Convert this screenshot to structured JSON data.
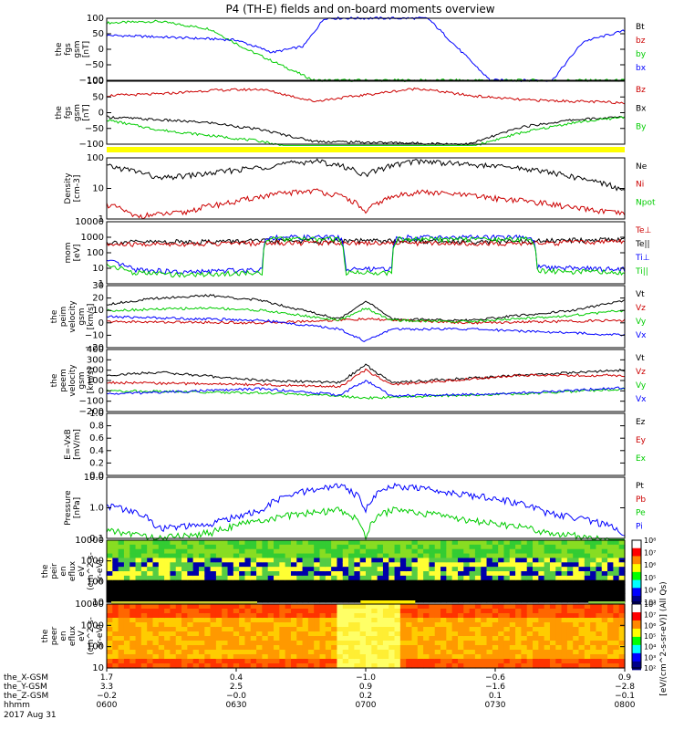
{
  "title": "P4 (TH-E) fields and on-board moments overview",
  "colors": {
    "black": "#000000",
    "red": "#cc0000",
    "green": "#00cc00",
    "blue": "#0000ff",
    "yellow": "#ffff00"
  },
  "chart_data": [
    {
      "type": "line",
      "panel": "fgs-gsm",
      "ylabel": [
        "the",
        "fgs",
        "gsm",
        "[nT]"
      ],
      "ylim": [
        -100,
        100
      ],
      "yticks": [
        "100",
        "50",
        "0",
        "−50",
        "−100"
      ],
      "legend": [
        "Bt",
        "bz",
        "by",
        "bx"
      ],
      "series": [
        {
          "name": "by",
          "color": "green",
          "x": [
            0,
            0.1,
            0.2,
            0.27,
            0.4,
            0.45,
            0.7,
            0.8,
            0.82
          ],
          "y": [
            85,
            90,
            65,
            0,
            -100,
            -100,
            -100,
            -100,
            -100
          ]
        },
        {
          "name": "bx",
          "color": "blue",
          "x": [
            0,
            0.1,
            0.25,
            0.32,
            0.38,
            0.42,
            0.62,
            0.74,
            0.86,
            0.92,
            1
          ],
          "y": [
            45,
            40,
            30,
            -10,
            10,
            100,
            100,
            -100,
            -100,
            25,
            60
          ]
        }
      ]
    },
    {
      "type": "line",
      "panel": "fgs-gsm-lo",
      "ylabel": [
        "the",
        "fgs",
        "gsm",
        "[nT]"
      ],
      "ylim": [
        -120,
        100
      ],
      "yticks": [
        "100",
        "50",
        "0",
        "−50",
        "−100"
      ],
      "legend": [
        "Bz",
        "Bx",
        "By"
      ],
      "series": [
        {
          "name": "Bz",
          "color": "red",
          "x": [
            0,
            0.1,
            0.2,
            0.3,
            0.4,
            0.6,
            0.7,
            0.8,
            0.9,
            1
          ],
          "y": [
            50,
            55,
            68,
            72,
            30,
            75,
            50,
            35,
            30,
            25
          ]
        },
        {
          "name": "Bx",
          "color": "black",
          "x": [
            0,
            0.1,
            0.2,
            0.3,
            0.4,
            0.7,
            0.8,
            0.9,
            1
          ],
          "y": [
            -25,
            -35,
            -45,
            -70,
            -110,
            -120,
            -60,
            -35,
            -25
          ]
        },
        {
          "name": "By",
          "color": "green",
          "x": [
            0,
            0.1,
            0.2,
            0.3,
            0.35,
            0.7,
            0.8,
            0.9,
            1
          ],
          "y": [
            -35,
            -70,
            -90,
            -110,
            -130,
            -130,
            -80,
            -45,
            -25
          ]
        }
      ]
    },
    {
      "type": "line",
      "panel": "density",
      "ylabel": [
        "Density",
        "[cm-3]"
      ],
      "yscale": "log",
      "ylim": [
        0.3,
        250
      ],
      "yticks": [
        "100",
        "10",
        "1"
      ],
      "legend": [
        "Ne",
        "Ni",
        "Npot"
      ],
      "series": [
        {
          "name": "Ne",
          "color": "black",
          "x": [
            0,
            0.1,
            0.2,
            0.3,
            0.4,
            0.5,
            0.6,
            0.7,
            0.8,
            0.9,
            1
          ],
          "y": [
            100,
            25,
            45,
            90,
            180,
            35,
            180,
            120,
            80,
            30,
            6
          ]
        },
        {
          "name": "Ni",
          "color": "red",
          "x": [
            0,
            0.05,
            0.15,
            0.25,
            0.4,
            0.5,
            0.6,
            0.75,
            0.9,
            1
          ],
          "y": [
            1.5,
            0.4,
            0.6,
            2,
            7,
            0.5,
            6,
            3,
            1,
            0.5
          ]
        }
      ]
    },
    {
      "type": "line",
      "panel": "temperature",
      "ylabel": [
        "mom",
        "[eV]"
      ],
      "yscale": "log",
      "ylim": [
        5,
        10000
      ],
      "yticks": [
        "10000",
        "1000",
        "100",
        "10",
        "1"
      ],
      "legend": [
        "Te⊥",
        "Te||",
        "Ti⊥",
        "Ti||"
      ],
      "series": [
        {
          "name": "Te||",
          "color": "black",
          "x": [
            0,
            0.2,
            0.4,
            0.6,
            0.8,
            1
          ],
          "y": [
            800,
            900,
            1000,
            950,
            900,
            1200
          ]
        },
        {
          "name": "Te⊥",
          "color": "red",
          "x": [
            0,
            0.2,
            0.4,
            0.6,
            0.8,
            1
          ],
          "y": [
            600,
            700,
            800,
            750,
            700,
            900
          ]
        },
        {
          "name": "Ti⊥",
          "color": "blue",
          "x": [
            0,
            0.05,
            0.15,
            0.3,
            0.31,
            0.45,
            0.46,
            0.55,
            0.56,
            0.82,
            0.83,
            1
          ],
          "y": [
            80,
            30,
            20,
            30,
            1500,
            1500,
            30,
            30,
            1500,
            1500,
            40,
            30
          ]
        },
        {
          "name": "Ti||",
          "color": "green",
          "x": [
            0,
            0.05,
            0.15,
            0.3,
            0.31,
            0.45,
            0.46,
            0.55,
            0.56,
            0.82,
            0.83,
            1
          ],
          "y": [
            50,
            20,
            15,
            20,
            1200,
            1200,
            20,
            20,
            1200,
            1200,
            25,
            20
          ]
        }
      ]
    },
    {
      "type": "line",
      "panel": "peim-velocity",
      "ylabel": [
        "the",
        "peim",
        "velocity",
        "gsm",
        "[km/s]"
      ],
      "ylim": [
        -20,
        30
      ],
      "yticks": [
        "30",
        "20",
        "10",
        "0",
        "−10",
        "−20"
      ],
      "legend": [
        "Vt",
        "Vz",
        "Vy",
        "Vx"
      ],
      "series": [
        {
          "name": "Vt",
          "color": "black",
          "x": [
            0,
            0.1,
            0.2,
            0.3,
            0.45,
            0.5,
            0.55,
            0.7,
            0.9,
            1
          ],
          "y": [
            15,
            20,
            22,
            18,
            3,
            18,
            3,
            2,
            10,
            18
          ]
        },
        {
          "name": "Vz",
          "color": "red",
          "x": [
            0,
            0.3,
            0.5,
            0.7,
            1
          ],
          "y": [
            1,
            0,
            3,
            0,
            2
          ]
        },
        {
          "name": "Vy",
          "color": "green",
          "x": [
            0,
            0.2,
            0.3,
            0.45,
            0.5,
            0.55,
            0.7,
            0.9,
            1
          ],
          "y": [
            10,
            12,
            10,
            2,
            12,
            2,
            1,
            6,
            10
          ]
        },
        {
          "name": "Vx",
          "color": "blue",
          "x": [
            0,
            0.3,
            0.45,
            0.5,
            0.55,
            0.7,
            0.9,
            1
          ],
          "y": [
            5,
            2,
            -5,
            -15,
            -5,
            -5,
            -8,
            -10
          ]
        }
      ]
    },
    {
      "type": "line",
      "panel": "peem-velocity",
      "ylabel": [
        "the",
        "peem",
        "velocity",
        "gsm",
        "[km/s]"
      ],
      "ylim": [
        -200,
        400
      ],
      "yticks": [
        "400",
        "300",
        "200",
        "100",
        "0",
        "−100",
        "−200"
      ],
      "legend": [
        "Vt",
        "Vz",
        "Vy",
        "Vx"
      ],
      "series": [
        {
          "name": "Vt",
          "color": "black",
          "x": [
            0,
            0.1,
            0.3,
            0.45,
            0.5,
            0.55,
            0.8,
            1
          ],
          "y": [
            150,
            180,
            100,
            80,
            250,
            80,
            150,
            200
          ]
        },
        {
          "name": "Vz",
          "color": "red",
          "x": [
            0,
            0.3,
            0.45,
            0.5,
            0.55,
            0.8,
            1
          ],
          "y": [
            80,
            60,
            40,
            200,
            60,
            150,
            150
          ]
        },
        {
          "name": "Vy",
          "color": "green",
          "x": [
            0,
            0.3,
            0.45,
            0.5,
            0.55,
            0.8,
            1
          ],
          "y": [
            0,
            -20,
            -50,
            -70,
            -60,
            -30,
            20
          ]
        },
        {
          "name": "Vx",
          "color": "blue",
          "x": [
            0,
            0.3,
            0.45,
            0.5,
            0.55,
            0.8,
            1
          ],
          "y": [
            -30,
            20,
            -40,
            100,
            -50,
            -20,
            30
          ]
        }
      ]
    },
    {
      "type": "line",
      "panel": "electric-field",
      "ylabel": [
        "E=-VxB",
        "[mV/m]"
      ],
      "ylim": [
        0,
        1
      ],
      "yticks": [
        "1.0",
        "0.8",
        "0.6",
        "0.4",
        "0.2",
        "0.0"
      ],
      "legend": [
        "Ez",
        "Ey",
        "Ex"
      ],
      "series": []
    },
    {
      "type": "line",
      "panel": "pressure",
      "ylabel": [
        "Pressure",
        "[nPa]"
      ],
      "yscale": "log",
      "ylim": [
        0.06,
        15
      ],
      "yticks": [
        "10.0",
        "1.0",
        "0.1"
      ],
      "legend": [
        "Pt",
        "Pb",
        "Pe",
        "Pi"
      ],
      "series": [
        {
          "name": "Pi",
          "color": "blue",
          "x": [
            0,
            0.1,
            0.2,
            0.3,
            0.45,
            0.5,
            0.55,
            0.7,
            0.85,
            1
          ],
          "y": [
            1.2,
            0.15,
            0.2,
            0.7,
            7,
            0.8,
            7,
            3,
            0.6,
            0.08
          ]
        },
        {
          "name": "Pe",
          "color": "green",
          "x": [
            0,
            0.1,
            0.2,
            0.3,
            0.45,
            0.5,
            0.55,
            0.7,
            0.85,
            1
          ],
          "y": [
            0.12,
            0.06,
            0.1,
            0.3,
            0.8,
            0.06,
            0.8,
            0.3,
            0.1,
            0.04
          ]
        }
      ]
    },
    {
      "type": "heatmap",
      "panel": "peir-en-eflux",
      "ylabel": [
        "the",
        "peir",
        "en",
        "eflux",
        "eV",
        "(cm^2-s-",
        "sr-eV)"
      ],
      "yscale": "log",
      "yticks": [
        "10000",
        "1000",
        "100",
        "10"
      ]
    },
    {
      "type": "heatmap",
      "panel": "peer-en-eflux",
      "ylabel": [
        "the",
        "peer",
        "en",
        "eflux",
        "eV",
        "(cm^2-s-",
        "sr-eV)"
      ],
      "yscale": "log",
      "yticks": [
        "10000",
        "1000",
        "100",
        "10"
      ]
    }
  ],
  "colorbar": {
    "ticks": [
      "10⁸",
      "10⁷",
      "10⁶",
      "10⁵",
      "10⁴",
      "10³"
    ],
    "ticks_lower": [
      "10⁸",
      "10⁷",
      "10⁶",
      "10⁵",
      "10⁴",
      "10³",
      "10²"
    ],
    "label": "[eV/(cm^2-s-sr-eV)] (All Qs)"
  },
  "xaxis": {
    "rows": [
      {
        "label": "the_X-GSM",
        "values": [
          "1.7",
          "0.4",
          "−1.0",
          "−0.6",
          "0.9"
        ]
      },
      {
        "label": "the_Y-GSM",
        "values": [
          "3.3",
          "2.5",
          "0.9",
          "−1.6",
          "−2.8"
        ]
      },
      {
        "label": "the_Z-GSM",
        "values": [
          "−0.2",
          "−0.0",
          "0.2",
          "0.1",
          "−0.1"
        ]
      },
      {
        "label": "hhmm",
        "values": [
          "0600",
          "0630",
          "0700",
          "0730",
          "0800"
        ]
      }
    ],
    "date": "2017 Aug 31"
  }
}
